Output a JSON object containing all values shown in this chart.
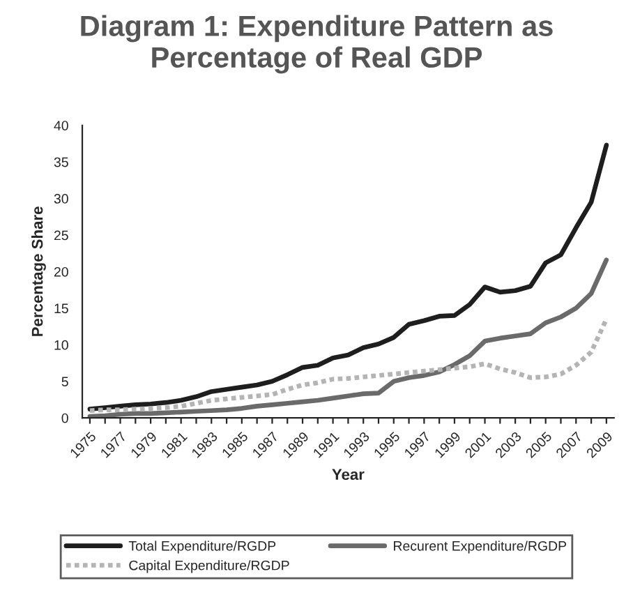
{
  "chart_data": {
    "type": "line",
    "title": "Diagram 1: Expenditure Pattern as\nPercentage of Real GDP",
    "xlabel": "Year",
    "ylabel": "Percentage Share",
    "categories": [
      "1975",
      null,
      "1977",
      null,
      "1979",
      null,
      "1981",
      null,
      "1983",
      null,
      "1985",
      null,
      "1987",
      null,
      "1989",
      null,
      "1991",
      null,
      "1993",
      null,
      "1995",
      null,
      "1997",
      null,
      "1999",
      null,
      "2001",
      null,
      "2003",
      null,
      "2005",
      null,
      "2007",
      null,
      "2009"
    ],
    "series": [
      {
        "name": "Total Expenditure/RGDP",
        "color": "#1e1e1e",
        "line_style": "solid",
        "values": [
          1.2,
          1.4,
          1.6,
          1.8,
          1.9,
          2.1,
          2.4,
          2.9,
          3.6,
          3.9,
          4.2,
          4.5,
          5.0,
          5.9,
          6.9,
          7.2,
          8.2,
          8.6,
          9.6,
          10.1,
          11.0,
          12.8,
          13.3,
          13.9,
          14.0,
          15.5,
          17.9,
          17.2,
          17.4,
          18.0,
          21.2,
          22.3,
          26.0,
          29.5,
          37.3
        ]
      },
      {
        "name": "Recurent Expenditure/RGDP",
        "color": "#6a6a6a",
        "line_style": "solid",
        "values": [
          0.2,
          0.3,
          0.5,
          0.6,
          0.6,
          0.7,
          0.8,
          0.9,
          1.0,
          1.1,
          1.3,
          1.6,
          1.8,
          2.0,
          2.2,
          2.4,
          2.7,
          3.0,
          3.3,
          3.4,
          5.0,
          5.5,
          5.8,
          6.3,
          7.3,
          8.5,
          10.5,
          10.9,
          11.2,
          11.5,
          13.0,
          13.8,
          15.0,
          17.0,
          21.6
        ]
      },
      {
        "name": "Capital Expenditure/RGDP",
        "color": "#b4b4b4",
        "line_style": "dotted",
        "values": [
          1.0,
          1.1,
          1.1,
          1.2,
          1.3,
          1.4,
          1.6,
          2.0,
          2.4,
          2.6,
          2.8,
          3.0,
          3.2,
          3.9,
          4.5,
          4.8,
          5.3,
          5.4,
          5.6,
          5.8,
          6.0,
          6.2,
          6.4,
          6.6,
          6.8,
          7.0,
          7.4,
          6.7,
          6.2,
          5.5,
          5.6,
          6.0,
          7.2,
          9.0,
          13.5
        ]
      }
    ],
    "ylim": [
      0,
      40
    ],
    "yticks": [
      0,
      5,
      10,
      15,
      20,
      25,
      30,
      35,
      40
    ],
    "grid": false,
    "legend": "bottom",
    "marker": "none"
  }
}
